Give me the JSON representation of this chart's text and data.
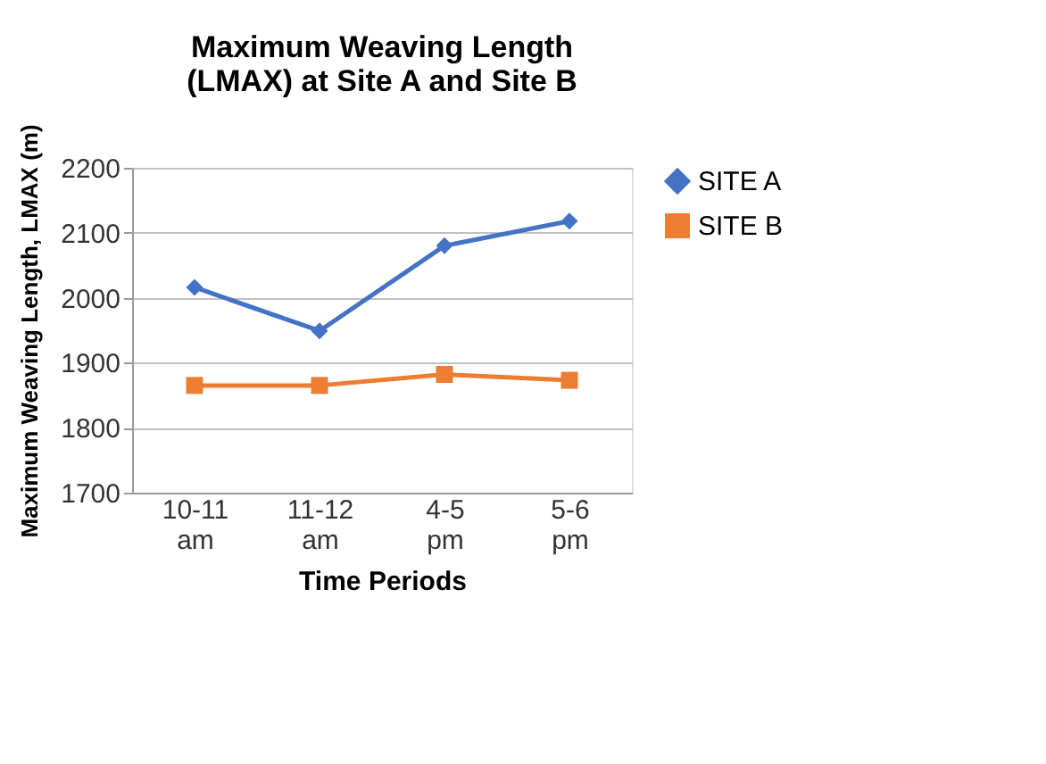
{
  "chart_data": {
    "type": "line",
    "title": "Maximum Weaving Length (LMAX) at Site A and Site B",
    "xlabel": "Time Periods",
    "ylabel": "Maximum Weaving Length, LMAX (m)",
    "categories": [
      "10-11 am",
      "11-12 am",
      "4-5 pm",
      "5-6 pm"
    ],
    "series": [
      {
        "name": "SITE A",
        "color": "#4472c4",
        "marker": "diamond",
        "values": [
          2016,
          1949,
          2080,
          2118
        ]
      },
      {
        "name": "SITE B",
        "color": "#ed7d31",
        "marker": "square",
        "values": [
          1865,
          1865,
          1882,
          1873
        ]
      }
    ],
    "ylim": [
      1700,
      2200
    ],
    "yticks": [
      1700,
      1800,
      1900,
      2000,
      2100,
      2200
    ],
    "grid": "y",
    "legend": "right",
    "line_style": "solid"
  }
}
